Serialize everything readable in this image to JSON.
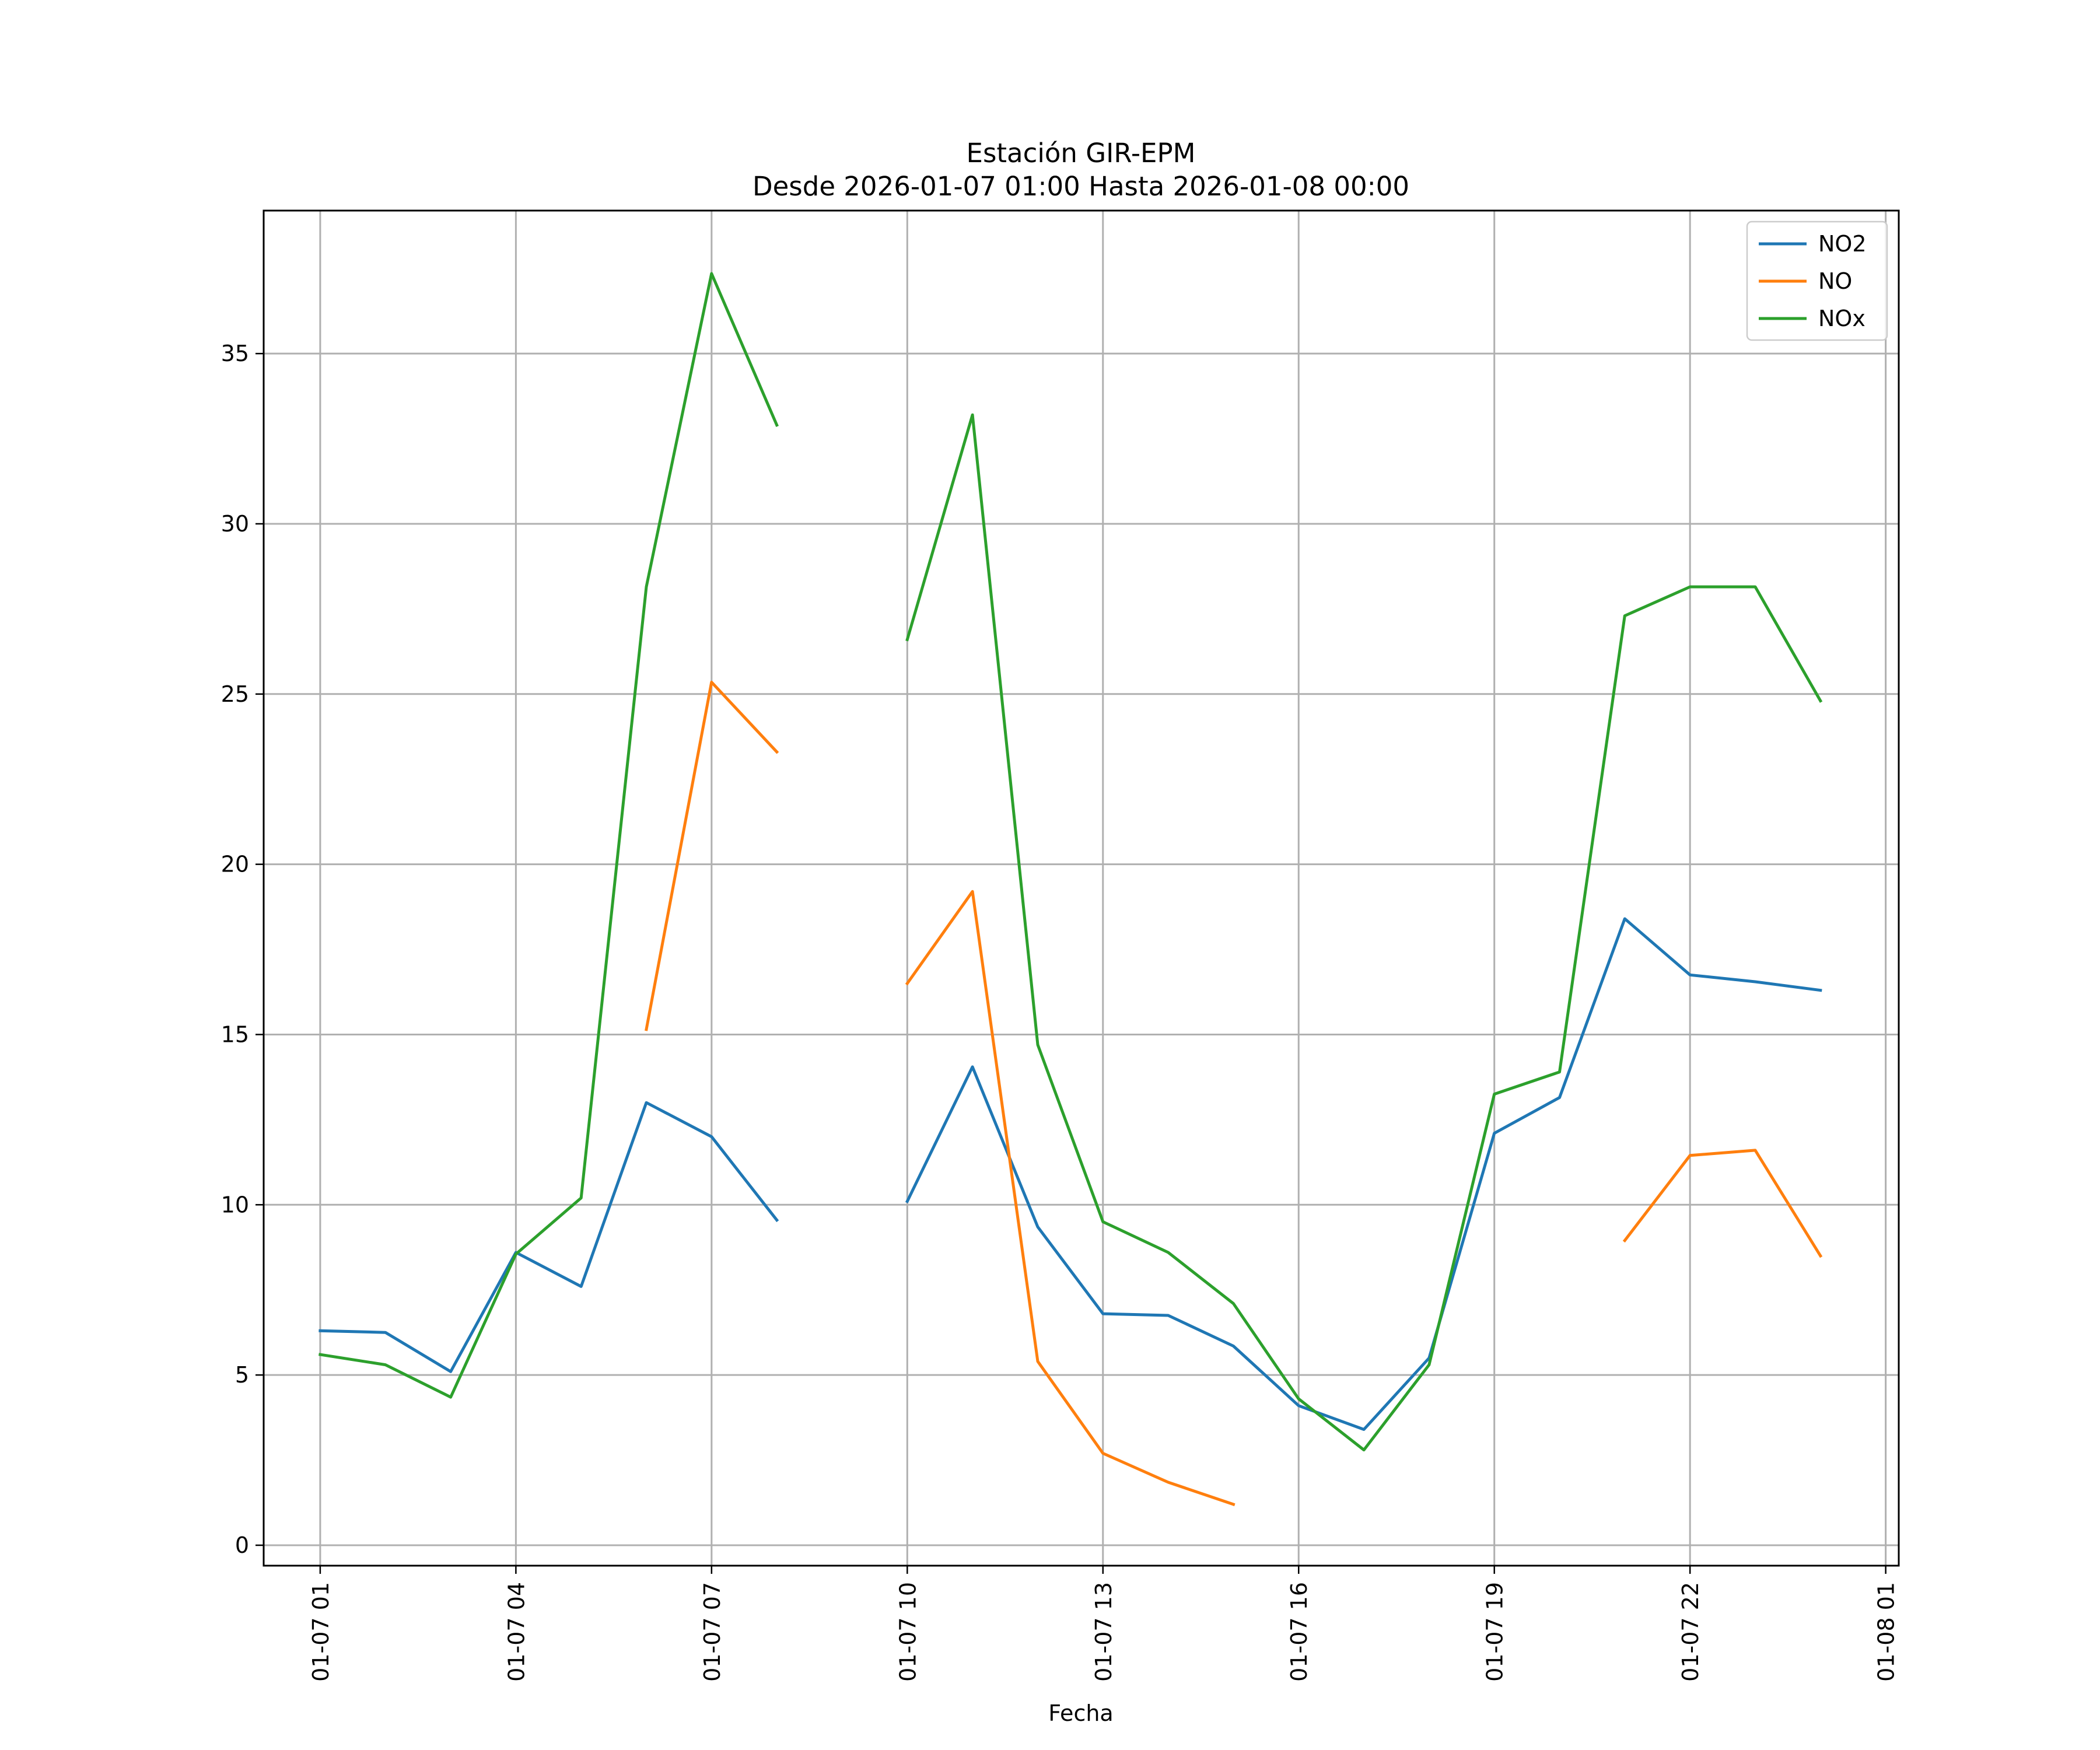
{
  "chart_data": {
    "type": "line",
    "title": "Estación GIR-EPM",
    "subtitle": "Desde 2026-01-07 01:00 Hasta 2026-01-08 00:00",
    "xlabel": "Fecha",
    "ylabel": "",
    "x": [
      "2026-01-07 01:00",
      "2026-01-07 02:00",
      "2026-01-07 03:00",
      "2026-01-07 04:00",
      "2026-01-07 05:00",
      "2026-01-07 06:00",
      "2026-01-07 07:00",
      "2026-01-07 08:00",
      "2026-01-07 09:00",
      "2026-01-07 10:00",
      "2026-01-07 11:00",
      "2026-01-07 12:00",
      "2026-01-07 13:00",
      "2026-01-07 14:00",
      "2026-01-07 15:00",
      "2026-01-07 16:00",
      "2026-01-07 17:00",
      "2026-01-07 18:00",
      "2026-01-07 19:00",
      "2026-01-07 20:00",
      "2026-01-07 21:00",
      "2026-01-07 22:00",
      "2026-01-07 23:00",
      "2026-01-08 00:00"
    ],
    "x_tick_labels": [
      "01-07 01",
      "01-07 04",
      "01-07 07",
      "01-07 10",
      "01-07 13",
      "01-07 16",
      "01-07 19",
      "01-07 22",
      "01-08 01"
    ],
    "y_ticks": [
      0,
      5,
      10,
      15,
      20,
      25,
      30,
      35
    ],
    "ylim": [
      -0.6,
      39.2
    ],
    "xlim": [
      "2026-01-07 00:08",
      "2026-01-08 01:12"
    ],
    "grid": true,
    "legend": "top-right",
    "series": [
      {
        "name": "NO2",
        "color": "#1f77b4",
        "values": [
          6.3,
          6.25,
          5.1,
          8.6,
          7.6,
          13.0,
          12.0,
          9.55,
          null,
          10.1,
          14.05,
          9.35,
          6.8,
          6.75,
          5.85,
          4.1,
          3.4,
          5.5,
          12.1,
          13.15,
          18.4,
          16.75,
          16.55,
          16.3
        ]
      },
      {
        "name": "NO",
        "color": "#ff7f0e",
        "values": [
          null,
          null,
          null,
          null,
          null,
          15.15,
          25.35,
          23.3,
          null,
          16.5,
          19.2,
          5.4,
          2.7,
          1.85,
          1.2,
          null,
          null,
          null,
          null,
          null,
          8.95,
          11.45,
          11.6,
          8.5
        ]
      },
      {
        "name": "NOx",
        "color": "#2ca02c",
        "values": [
          5.6,
          5.3,
          4.35,
          8.55,
          10.2,
          28.15,
          37.35,
          32.9,
          null,
          26.6,
          33.2,
          14.7,
          9.5,
          8.6,
          7.1,
          4.3,
          2.8,
          5.3,
          13.25,
          13.9,
          27.3,
          28.15,
          28.15,
          24.8
        ]
      }
    ]
  }
}
